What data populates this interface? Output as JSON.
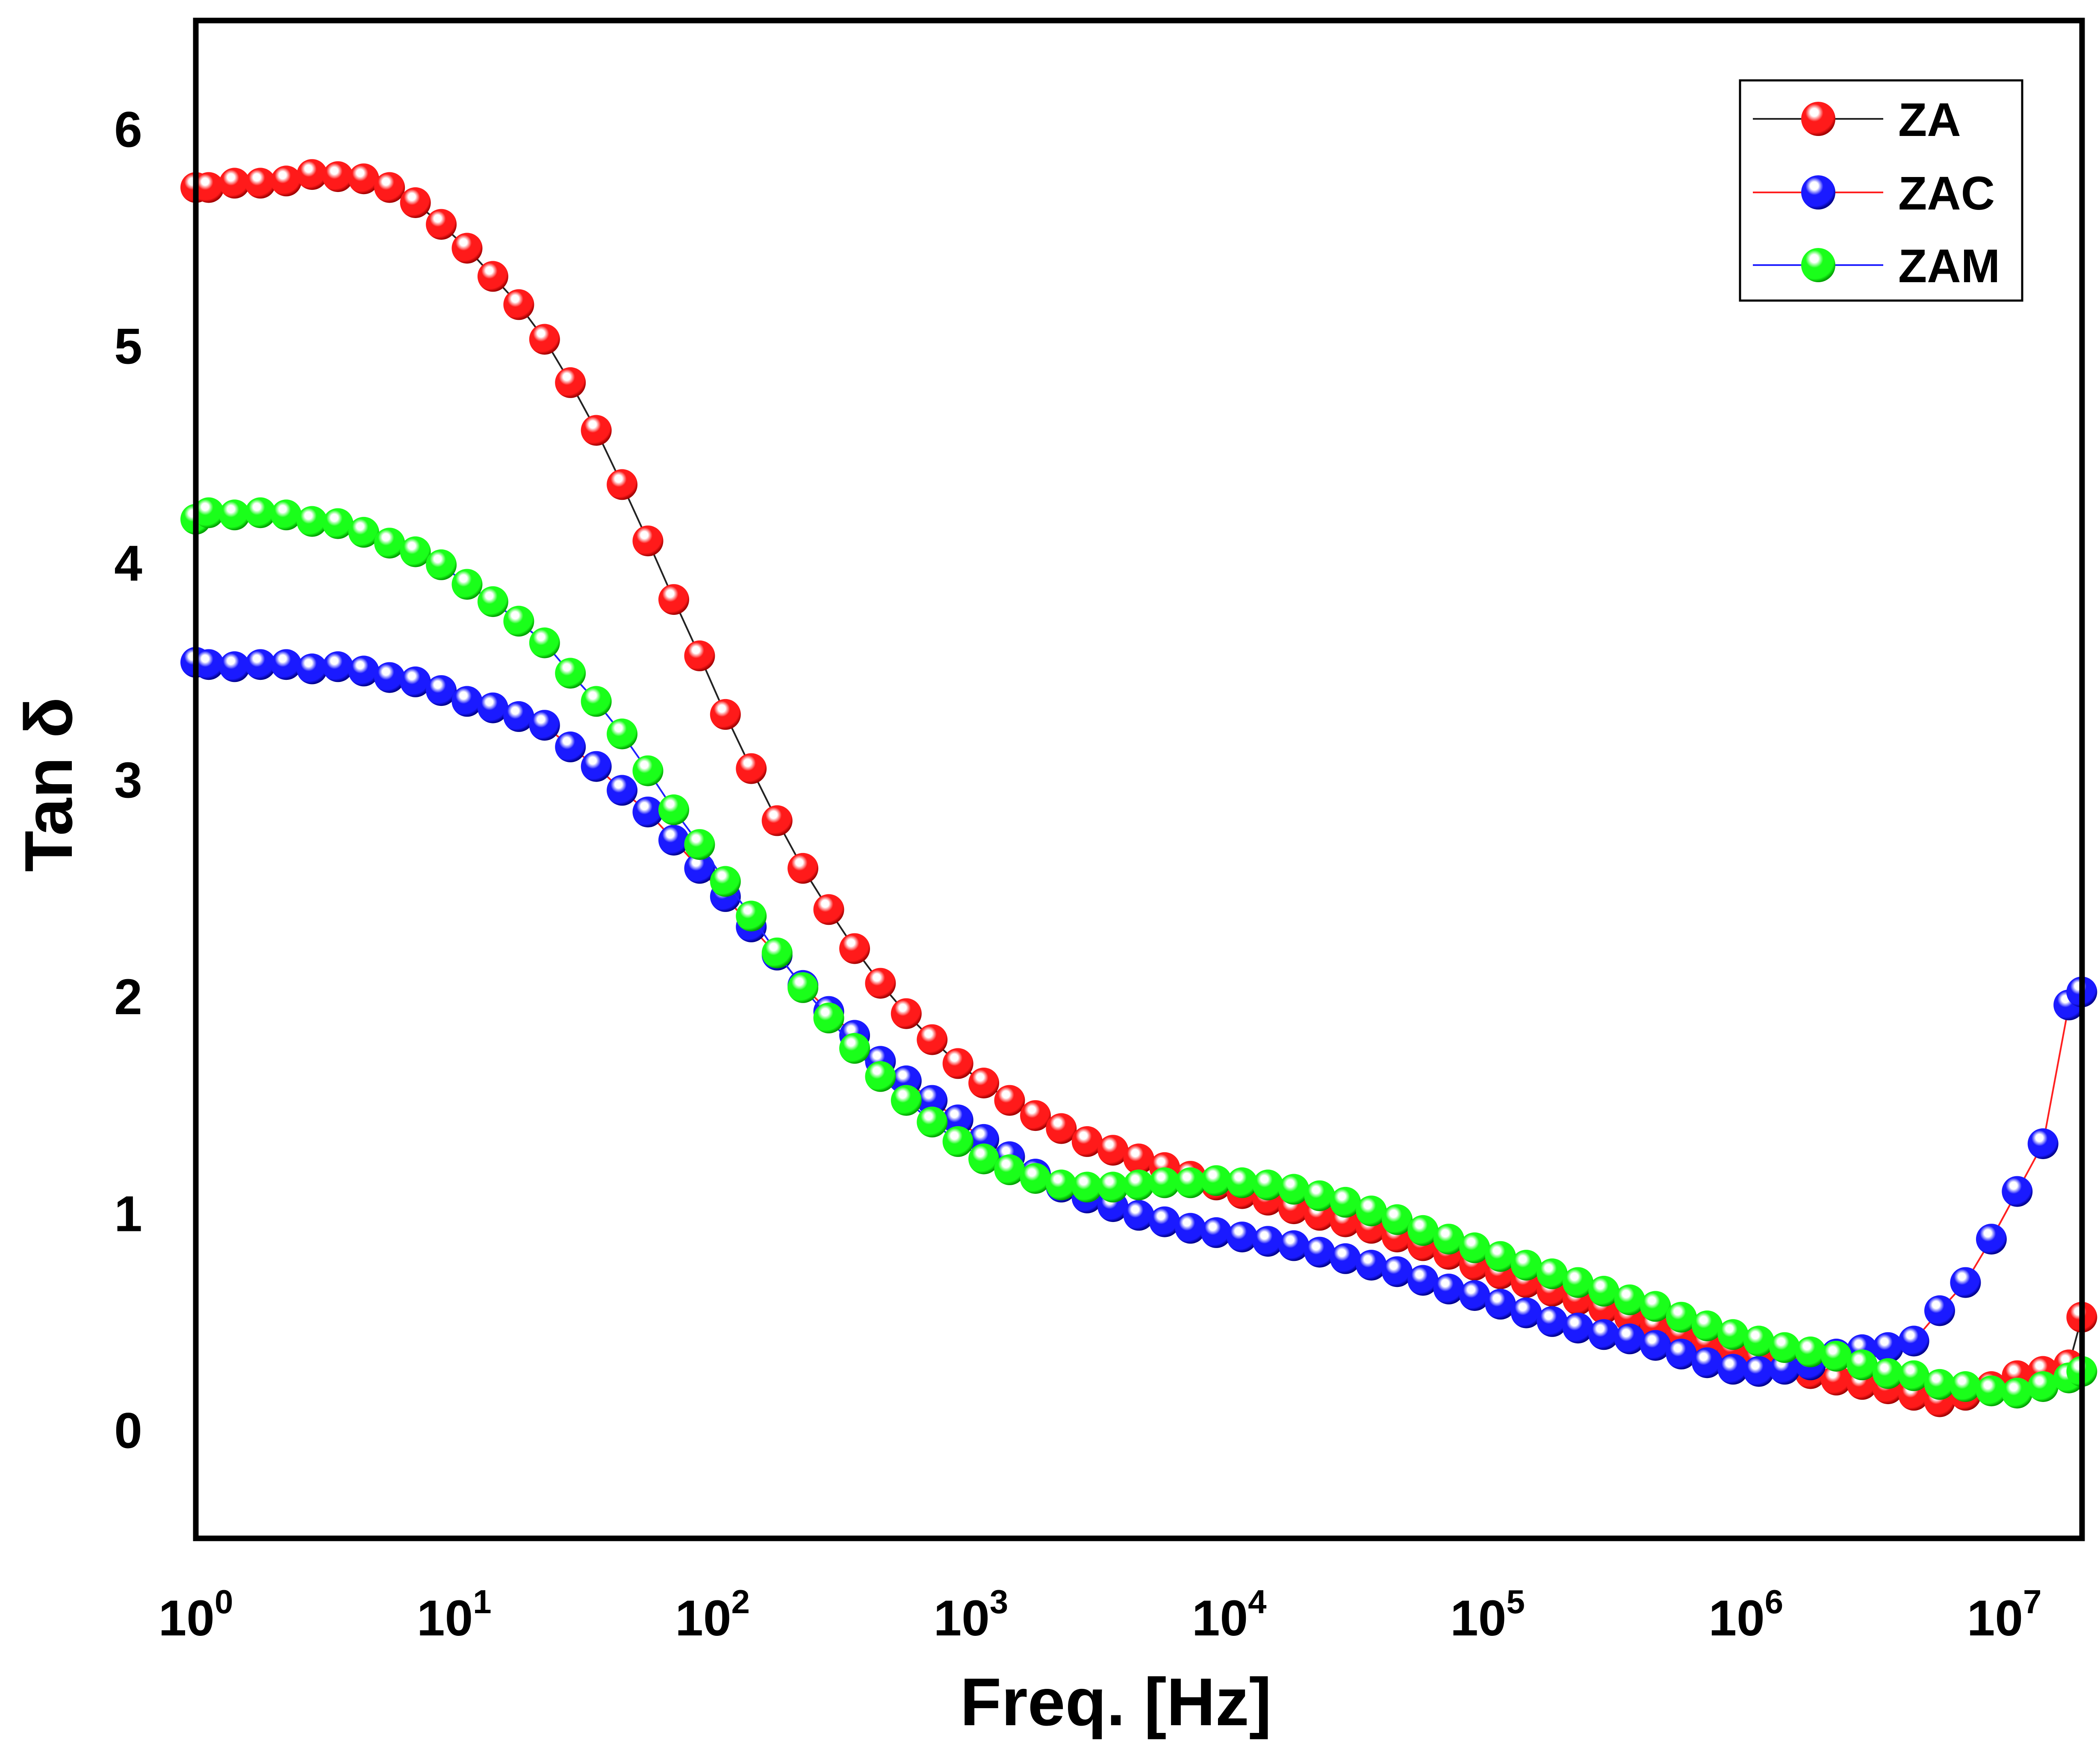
{
  "chart_data": {
    "type": "line",
    "title": "",
    "xlabel": "Freq. [Hz]",
    "ylabel": "Tan δ",
    "xscale": "log",
    "xlim": [
      1,
      20000000
    ],
    "ylim": [
      -0.5,
      6.5
    ],
    "grid": false,
    "legend_position": "top-right",
    "x_ticks": [
      {
        "value": 1,
        "base": "10",
        "exp": "0"
      },
      {
        "value": 10,
        "base": "10",
        "exp": "1"
      },
      {
        "value": 100,
        "base": "10",
        "exp": "2"
      },
      {
        "value": 1000,
        "base": "10",
        "exp": "3"
      },
      {
        "value": 10000,
        "base": "10",
        "exp": "4"
      },
      {
        "value": 100000,
        "base": "10",
        "exp": "5"
      },
      {
        "value": 1000000,
        "base": "10",
        "exp": "6"
      },
      {
        "value": 10000000,
        "base": "10",
        "exp": "7"
      }
    ],
    "y_ticks": [
      {
        "value": 0,
        "label": "0"
      },
      {
        "value": 1,
        "label": "1"
      },
      {
        "value": 2,
        "label": "2"
      },
      {
        "value": 3,
        "label": "3"
      },
      {
        "value": 4,
        "label": "4"
      },
      {
        "value": 5,
        "label": "5"
      },
      {
        "value": 6,
        "label": "6"
      }
    ],
    "series": [
      {
        "name": "ZA",
        "marker_color": "#ff1a1a",
        "marker_dark": "#a00000",
        "line_color": "#222222",
        "x_log": [
          0.0,
          0.05,
          0.15,
          0.25,
          0.35,
          0.45,
          0.55,
          0.65,
          0.75,
          0.85,
          0.95,
          1.05,
          1.15,
          1.25,
          1.35,
          1.45,
          1.55,
          1.65,
          1.75,
          1.85,
          1.95,
          2.05,
          2.15,
          2.25,
          2.35,
          2.45,
          2.55,
          2.65,
          2.75,
          2.85,
          2.95,
          3.05,
          3.15,
          3.25,
          3.35,
          3.45,
          3.55,
          3.65,
          3.75,
          3.85,
          3.95,
          4.05,
          4.15,
          4.25,
          4.35,
          4.45,
          4.55,
          4.65,
          4.75,
          4.85,
          4.95,
          5.05,
          5.15,
          5.25,
          5.35,
          5.45,
          5.55,
          5.65,
          5.75,
          5.85,
          5.95,
          6.05,
          6.15,
          6.25,
          6.35,
          6.45,
          6.55,
          6.65,
          6.75,
          6.85,
          6.95,
          7.05,
          7.15,
          7.25,
          7.3
        ],
        "y": [
          5.73,
          5.73,
          5.75,
          5.75,
          5.76,
          5.79,
          5.78,
          5.77,
          5.73,
          5.66,
          5.56,
          5.45,
          5.32,
          5.19,
          5.03,
          4.83,
          4.61,
          4.36,
          4.1,
          3.83,
          3.57,
          3.3,
          3.05,
          2.81,
          2.59,
          2.4,
          2.22,
          2.06,
          1.92,
          1.8,
          1.69,
          1.6,
          1.52,
          1.45,
          1.39,
          1.33,
          1.29,
          1.25,
          1.21,
          1.17,
          1.13,
          1.09,
          1.06,
          1.02,
          0.99,
          0.96,
          0.93,
          0.89,
          0.85,
          0.81,
          0.76,
          0.72,
          0.68,
          0.64,
          0.6,
          0.56,
          0.52,
          0.48,
          0.44,
          0.4,
          0.37,
          0.33,
          0.3,
          0.26,
          0.23,
          0.21,
          0.19,
          0.16,
          0.13,
          0.16,
          0.2,
          0.25,
          0.27,
          0.3,
          0.52
        ]
      },
      {
        "name": "ZAC",
        "marker_color": "#1a1aff",
        "marker_dark": "#00008a",
        "line_color": "#ff2020",
        "x_log": [
          0.0,
          0.05,
          0.15,
          0.25,
          0.35,
          0.45,
          0.55,
          0.65,
          0.75,
          0.85,
          0.95,
          1.05,
          1.15,
          1.25,
          1.35,
          1.45,
          1.55,
          1.65,
          1.75,
          1.85,
          1.95,
          2.05,
          2.15,
          2.25,
          2.35,
          2.45,
          2.55,
          2.65,
          2.75,
          2.85,
          2.95,
          3.05,
          3.15,
          3.25,
          3.35,
          3.45,
          3.55,
          3.65,
          3.75,
          3.85,
          3.95,
          4.05,
          4.15,
          4.25,
          4.35,
          4.45,
          4.55,
          4.65,
          4.75,
          4.85,
          4.95,
          5.05,
          5.15,
          5.25,
          5.35,
          5.45,
          5.55,
          5.65,
          5.75,
          5.85,
          5.95,
          6.05,
          6.15,
          6.25,
          6.35,
          6.45,
          6.55,
          6.65,
          6.75,
          6.85,
          6.95,
          7.05,
          7.15,
          7.25,
          7.3
        ],
        "y": [
          3.54,
          3.53,
          3.52,
          3.53,
          3.53,
          3.51,
          3.52,
          3.5,
          3.47,
          3.45,
          3.41,
          3.36,
          3.33,
          3.29,
          3.25,
          3.15,
          3.06,
          2.95,
          2.85,
          2.72,
          2.59,
          2.46,
          2.32,
          2.19,
          2.05,
          1.93,
          1.82,
          1.7,
          1.61,
          1.52,
          1.43,
          1.34,
          1.26,
          1.18,
          1.12,
          1.07,
          1.03,
          0.99,
          0.96,
          0.93,
          0.91,
          0.89,
          0.87,
          0.85,
          0.82,
          0.79,
          0.76,
          0.73,
          0.69,
          0.65,
          0.62,
          0.58,
          0.54,
          0.5,
          0.47,
          0.44,
          0.42,
          0.39,
          0.35,
          0.31,
          0.28,
          0.27,
          0.28,
          0.3,
          0.35,
          0.37,
          0.38,
          0.41,
          0.55,
          0.68,
          0.88,
          1.1,
          1.32,
          1.96,
          2.02
        ]
      },
      {
        "name": "ZAM",
        "marker_color": "#1aff1a",
        "marker_dark": "#00a000",
        "line_color": "#2020ff",
        "x_log": [
          0.0,
          0.05,
          0.15,
          0.25,
          0.35,
          0.45,
          0.55,
          0.65,
          0.75,
          0.85,
          0.95,
          1.05,
          1.15,
          1.25,
          1.35,
          1.45,
          1.55,
          1.65,
          1.75,
          1.85,
          1.95,
          2.05,
          2.15,
          2.25,
          2.35,
          2.45,
          2.55,
          2.65,
          2.75,
          2.85,
          2.95,
          3.05,
          3.15,
          3.25,
          3.35,
          3.45,
          3.55,
          3.65,
          3.75,
          3.85,
          3.95,
          4.05,
          4.15,
          4.25,
          4.35,
          4.45,
          4.55,
          4.65,
          4.75,
          4.85,
          4.95,
          5.05,
          5.15,
          5.25,
          5.35,
          5.45,
          5.55,
          5.65,
          5.75,
          5.85,
          5.95,
          6.05,
          6.15,
          6.25,
          6.35,
          6.45,
          6.55,
          6.65,
          6.75,
          6.85,
          6.95,
          7.05,
          7.15,
          7.25,
          7.3
        ],
        "y": [
          4.2,
          4.23,
          4.22,
          4.23,
          4.22,
          4.19,
          4.18,
          4.14,
          4.09,
          4.05,
          3.99,
          3.9,
          3.82,
          3.73,
          3.63,
          3.49,
          3.36,
          3.21,
          3.04,
          2.86,
          2.7,
          2.53,
          2.37,
          2.2,
          2.04,
          1.9,
          1.76,
          1.63,
          1.52,
          1.42,
          1.33,
          1.25,
          1.2,
          1.16,
          1.13,
          1.12,
          1.12,
          1.13,
          1.14,
          1.14,
          1.15,
          1.14,
          1.13,
          1.11,
          1.08,
          1.05,
          1.01,
          0.97,
          0.92,
          0.88,
          0.84,
          0.8,
          0.76,
          0.72,
          0.68,
          0.64,
          0.6,
          0.57,
          0.52,
          0.48,
          0.44,
          0.41,
          0.38,
          0.36,
          0.34,
          0.3,
          0.26,
          0.25,
          0.21,
          0.2,
          0.18,
          0.17,
          0.2,
          0.24,
          0.27
        ]
      }
    ]
  }
}
